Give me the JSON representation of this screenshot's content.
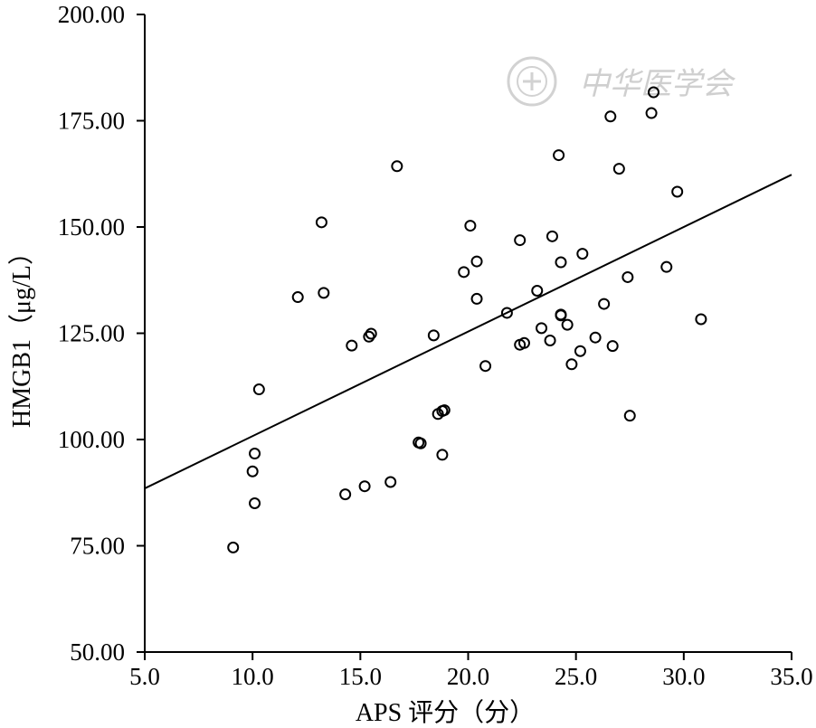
{
  "watermark": {
    "text": "中华医学会",
    "icon": "society-seal-icon"
  },
  "chart_data": {
    "type": "scatter",
    "title": "",
    "xlabel": "APS 评分（分）",
    "ylabel": "HMGB1（μg/L）",
    "xlim": [
      5.0,
      35.0
    ],
    "ylim": [
      50.0,
      200.0
    ],
    "x_ticks": [
      "5.0",
      "10.0",
      "15.0",
      "20.0",
      "25.0",
      "30.0",
      "35.0"
    ],
    "y_ticks": [
      "50.00",
      "75.00",
      "100.00",
      "125.00",
      "150.00",
      "175.00",
      "200.00"
    ],
    "grid": false,
    "fit_line": {
      "x": [
        5.0,
        35.0
      ],
      "y": [
        88.5,
        162.3
      ]
    },
    "points": [
      [
        9.1,
        74.6
      ],
      [
        10.1,
        96.7
      ],
      [
        10.0,
        92.5
      ],
      [
        10.1,
        85.0
      ],
      [
        10.3,
        111.8
      ],
      [
        12.1,
        133.5
      ],
      [
        13.2,
        151.1
      ],
      [
        13.3,
        134.5
      ],
      [
        14.3,
        87.1
      ],
      [
        14.6,
        122.1
      ],
      [
        15.2,
        89.0
      ],
      [
        15.4,
        124.2
      ],
      [
        15.5,
        124.9
      ],
      [
        16.4,
        90.0
      ],
      [
        16.7,
        164.3
      ],
      [
        17.8,
        99.1
      ],
      [
        17.7,
        99.3
      ],
      [
        18.4,
        124.5
      ],
      [
        18.6,
        106.0
      ],
      [
        18.8,
        96.4
      ],
      [
        18.8,
        106.7
      ],
      [
        18.9,
        106.9
      ],
      [
        19.8,
        139.4
      ],
      [
        20.1,
        150.3
      ],
      [
        20.4,
        141.9
      ],
      [
        20.4,
        133.1
      ],
      [
        20.8,
        117.3
      ],
      [
        21.8,
        129.8
      ],
      [
        22.4,
        146.9
      ],
      [
        22.4,
        122.3
      ],
      [
        22.6,
        122.7
      ],
      [
        23.2,
        135.0
      ],
      [
        23.4,
        126.2
      ],
      [
        23.8,
        123.3
      ],
      [
        23.9,
        147.8
      ],
      [
        24.2,
        166.9
      ],
      [
        24.3,
        129.4
      ],
      [
        24.3,
        129.2
      ],
      [
        24.3,
        141.7
      ],
      [
        24.6,
        127.0
      ],
      [
        24.8,
        117.7
      ],
      [
        25.2,
        120.8
      ],
      [
        25.3,
        143.7
      ],
      [
        25.9,
        124.0
      ],
      [
        26.3,
        131.9
      ],
      [
        26.6,
        176.0
      ],
      [
        26.7,
        122.0
      ],
      [
        27.0,
        163.7
      ],
      [
        27.4,
        138.2
      ],
      [
        27.5,
        105.6
      ],
      [
        28.5,
        176.8
      ],
      [
        28.6,
        181.7
      ],
      [
        29.2,
        140.6
      ],
      [
        29.7,
        158.3
      ],
      [
        30.8,
        128.3
      ]
    ]
  }
}
